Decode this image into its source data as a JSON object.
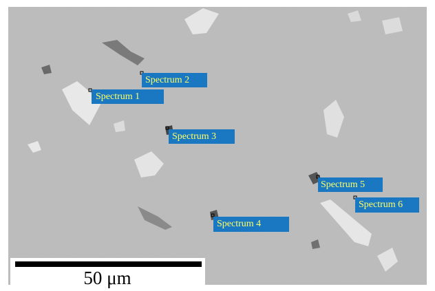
{
  "spectra": [
    {
      "label": "Spectrum 1"
    },
    {
      "label": "Spectrum 2"
    },
    {
      "label": "Spectrum 3"
    },
    {
      "label": "Spectrum 4"
    },
    {
      "label": "Spectrum 5"
    },
    {
      "label": "Spectrum 6"
    }
  ],
  "scale_bar": {
    "label": "50 μm"
  }
}
